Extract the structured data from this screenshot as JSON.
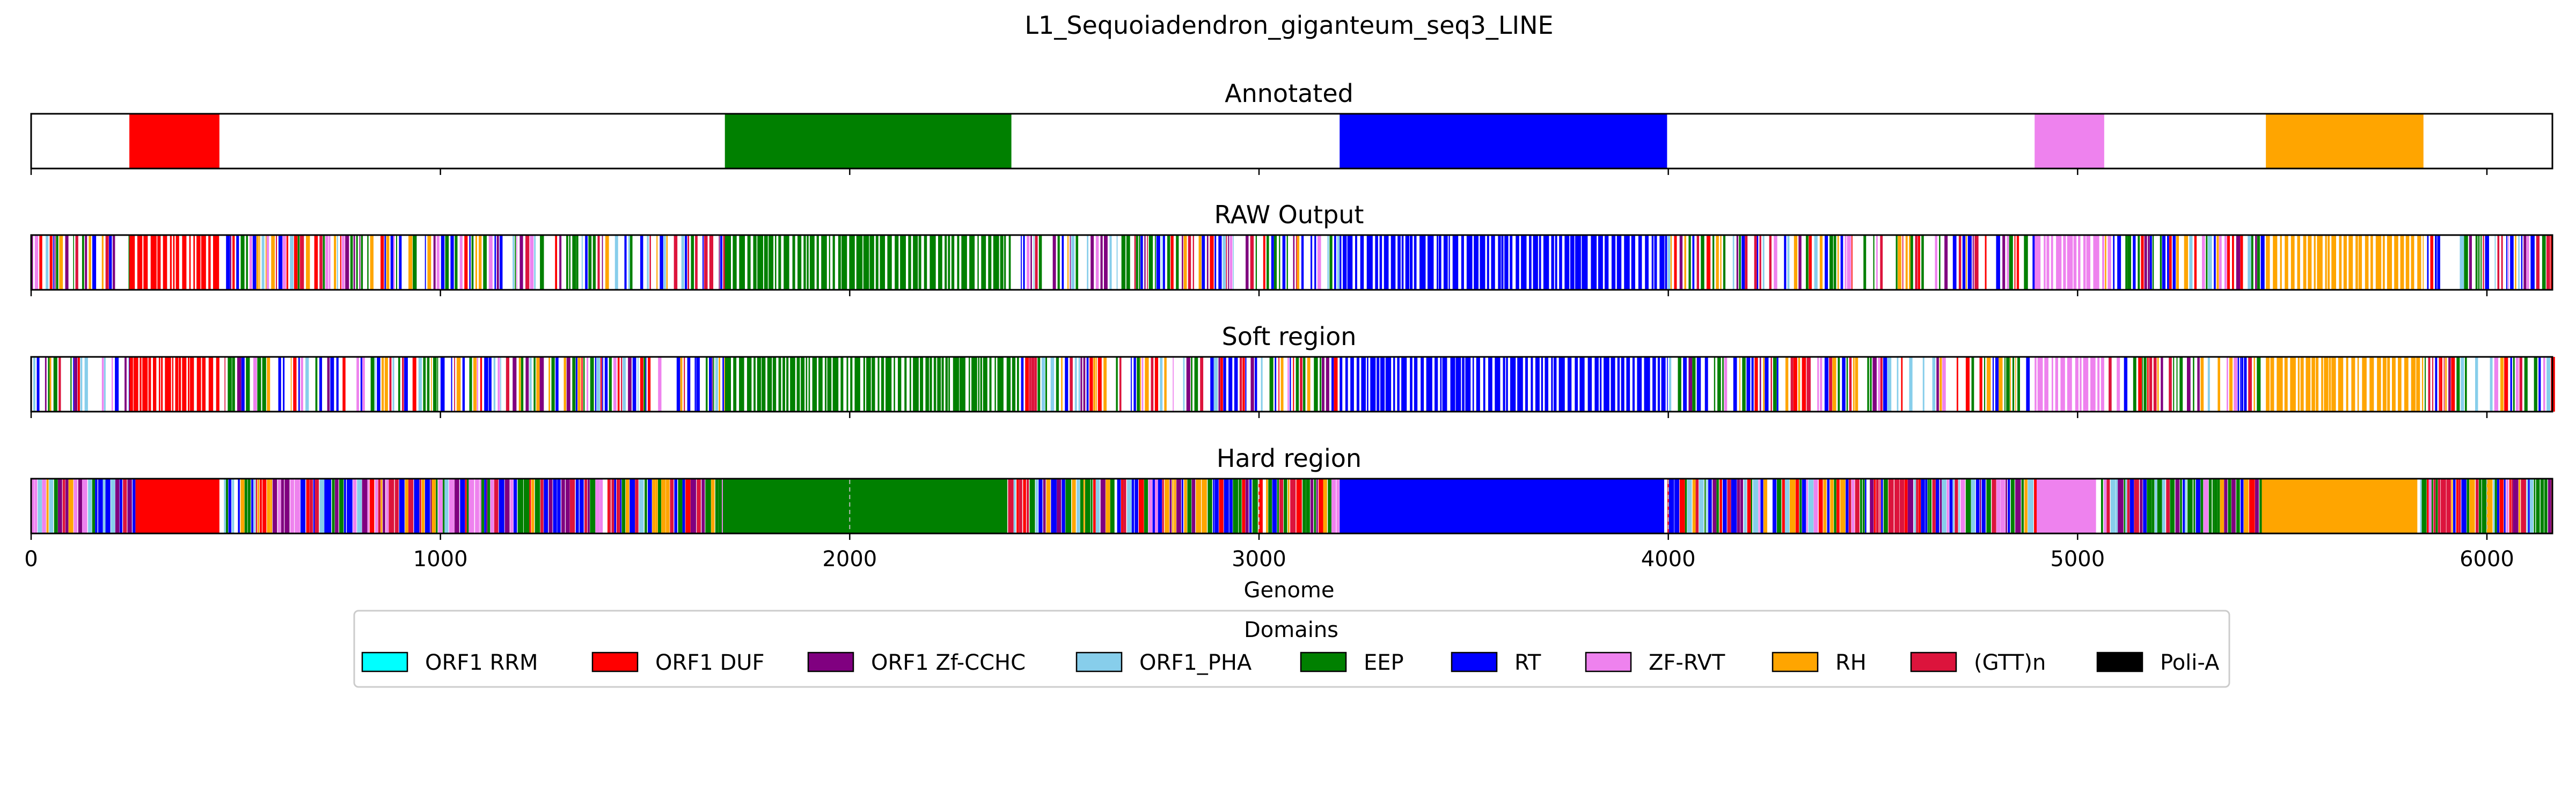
{
  "chart_data": {
    "type": "genome-track",
    "title": "L1_Sequoiadendron_giganteum_seq3_LINE",
    "xlabel": "Genome",
    "xlim": [
      0,
      6160
    ],
    "xticks": [
      0,
      1000,
      2000,
      3000,
      4000,
      5000,
      6000
    ],
    "legend": {
      "title": "Domains",
      "placement": "bottom-center",
      "items": [
        {
          "name": "ORF1 RRM",
          "color": "#00ffff"
        },
        {
          "name": "ORF1 DUF",
          "color": "#ff0000"
        },
        {
          "name": "ORF1 Zf-CCHC",
          "color": "#800080"
        },
        {
          "name": "ORF1_PHA",
          "color": "#87ceeb"
        },
        {
          "name": "EEP",
          "color": "#008000"
        },
        {
          "name": "RT",
          "color": "#0000ff"
        },
        {
          "name": "ZF-RVT",
          "color": "#ee82ee"
        },
        {
          "name": "RH",
          "color": "#ffa500"
        },
        {
          "name": "(GTT)n",
          "color": "#dc143c"
        },
        {
          "name": "Poli-A",
          "color": "#000000"
        }
      ]
    },
    "tracks": [
      {
        "name": "Annotated",
        "texture": "solid",
        "regions": [
          {
            "domain": "ORF1 DUF",
            "start": 240,
            "end": 460
          },
          {
            "domain": "EEP",
            "start": 1695,
            "end": 2395
          },
          {
            "domain": "RT",
            "start": 3197,
            "end": 3997
          },
          {
            "domain": "ZF-RVT",
            "start": 4895,
            "end": 5065
          },
          {
            "domain": "RH",
            "start": 5460,
            "end": 5845
          }
        ]
      },
      {
        "name": "RAW Output",
        "texture": "sparse",
        "regions": [
          {
            "domain": "ORF1 DUF",
            "start": 240,
            "end": 460
          },
          {
            "domain": "EEP",
            "start": 1695,
            "end": 2395
          },
          {
            "domain": "RT",
            "start": 3197,
            "end": 3997
          },
          {
            "domain": "ZF-RVT",
            "start": 4895,
            "end": 5065
          },
          {
            "domain": "RH",
            "start": 5460,
            "end": 5845
          }
        ]
      },
      {
        "name": "Soft region",
        "texture": "sparse",
        "regions": [
          {
            "domain": "ORF1 DUF",
            "start": 240,
            "end": 460
          },
          {
            "domain": "EEP",
            "start": 1695,
            "end": 2395
          },
          {
            "domain": "RT",
            "start": 3197,
            "end": 3997
          },
          {
            "domain": "ZF-RVT",
            "start": 4895,
            "end": 5065
          },
          {
            "domain": "RH",
            "start": 5460,
            "end": 5845
          }
        ]
      },
      {
        "name": "Hard region",
        "texture": "dense",
        "regions": [
          {
            "domain": "ORF1 DUF",
            "start": 255,
            "end": 460
          },
          {
            "domain": "EEP",
            "start": 1690,
            "end": 2385
          },
          {
            "domain": "RT",
            "start": 3197,
            "end": 3990
          },
          {
            "domain": "ZF-RVT",
            "start": 4900,
            "end": 5045
          },
          {
            "domain": "RH",
            "start": 5450,
            "end": 5830
          }
        ]
      }
    ]
  }
}
